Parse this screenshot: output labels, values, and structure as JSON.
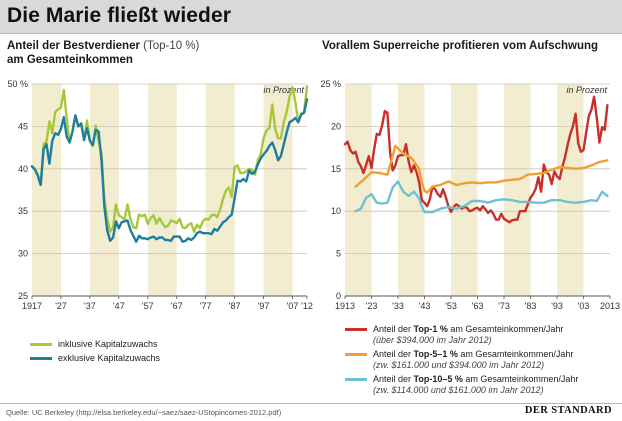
{
  "headline": "Die Marie fließt wieder",
  "left_title_bold": "Anteil der Bestverdiener",
  "left_title_paren": "(Top-10 %)",
  "left_title_line2": "am Gesamteinkommen",
  "right_title": "Vorallem Superreiche profitieren vom Aufschwung",
  "unit_note": "in Prozent",
  "source": "Quelle: UC Berkeley (http://elsa.berkeley.edu/~saez/saez-UStopincomes-2012.pdf)",
  "brand": "DER STANDARD",
  "legend_left": [
    {
      "label": "inklusive Kapitalzuwachs",
      "color": "#a7c83a"
    },
    {
      "label": "exklusive Kapitalzuwachs",
      "color": "#1f7ea0"
    }
  ],
  "legend_right": [
    {
      "pre": "Anteil der ",
      "bold": "Top-1 %",
      "post": " am Gesamteinkommen/Jahr",
      "note": "(über $394.000 im Jahr 2012)",
      "color": "#c8302a"
    },
    {
      "pre": "Anteil der ",
      "bold": "Top-5–1 %",
      "post": " am Gesamteinkommen/Jahr",
      "note": "(zw. $161.000 und $394.000 im Jahr 2012)",
      "color": "#f0a032"
    },
    {
      "pre": "Anteil der ",
      "bold": "Top-10–5 %",
      "post": " am Gesamteinkommen/Jahr",
      "note": "(zw. $114.000 und $161.000 im Jahr 2012)",
      "color": "#6cc3cf"
    }
  ],
  "colors": {
    "band": "#f2ecd0",
    "grid": "#c9c4b3",
    "baseline": "#555555"
  },
  "chart_data": [
    {
      "type": "line",
      "title": "Anteil der Bestverdiener (Top-10 %) am Gesamteinkommen",
      "xlim": [
        1917,
        2012
      ],
      "ylim": [
        25,
        50
      ],
      "yticks": [
        25,
        30,
        35,
        40,
        45,
        50
      ],
      "ytick_labels": [
        "25",
        "30",
        "35",
        "40",
        "45",
        "50 %"
      ],
      "xticks": [
        1917,
        1927,
        1937,
        1947,
        1957,
        1967,
        1977,
        1987,
        1997,
        2007,
        2012
      ],
      "xtick_labels": [
        "1917",
        "'27",
        "'37",
        "'47",
        "'57",
        "'67",
        "'77",
        "'87",
        "'97",
        "'07",
        "'12"
      ],
      "series": [
        {
          "name": "inklusive Kapitalzuwachs",
          "color": "#a7c83a",
          "x": [
            1917,
            1918,
            1919,
            1920,
            1921,
            1922,
            1923,
            1924,
            1925,
            1926,
            1927,
            1928,
            1929,
            1930,
            1931,
            1932,
            1933,
            1934,
            1935,
            1936,
            1937,
            1938,
            1939,
            1940,
            1941,
            1942,
            1943,
            1944,
            1945,
            1946,
            1947,
            1948,
            1949,
            1950,
            1951,
            1952,
            1953,
            1954,
            1955,
            1956,
            1957,
            1958,
            1959,
            1960,
            1961,
            1962,
            1963,
            1964,
            1965,
            1966,
            1967,
            1968,
            1969,
            1970,
            1971,
            1972,
            1973,
            1974,
            1975,
            1976,
            1977,
            1978,
            1979,
            1980,
            1981,
            1982,
            1983,
            1984,
            1985,
            1986,
            1987,
            1988,
            1989,
            1990,
            1991,
            1992,
            1993,
            1994,
            1995,
            1996,
            1997,
            1998,
            1999,
            2000,
            2001,
            2002,
            2003,
            2004,
            2005,
            2006,
            2007,
            2008,
            2009,
            2010,
            2011,
            2012
          ],
          "y": [
            40.3,
            40.0,
            39.3,
            38.1,
            42.9,
            43.2,
            45.6,
            44.2,
            46.7,
            47.0,
            47.2,
            49.3,
            46.0,
            43.1,
            44.4,
            46.3,
            45.0,
            45.4,
            43.4,
            45.7,
            43.3,
            42.7,
            45.1,
            43.2,
            41.8,
            36.3,
            34.1,
            32.6,
            33.1,
            35.8,
            34.5,
            34.3,
            34.0,
            35.8,
            34.1,
            33.1,
            33.0,
            34.6,
            34.4,
            34.6,
            33.5,
            34.2,
            34.5,
            33.5,
            34.2,
            33.6,
            33.1,
            33.3,
            33.9,
            33.8,
            33.6,
            34.1,
            33.1,
            33.0,
            33.4,
            33.6,
            32.6,
            33.4,
            33.0,
            33.8,
            34.1,
            34.0,
            34.5,
            34.6,
            34.3,
            35.2,
            36.5,
            37.4,
            37.8,
            36.7,
            40.2,
            40.4,
            39.5,
            39.5,
            39.7,
            40.0,
            39.9,
            39.3,
            41.0,
            41.7,
            43.6,
            44.5,
            44.8,
            47.6,
            44.7,
            43.6,
            43.6,
            45.5,
            46.7,
            48.5,
            49.6,
            47.8,
            45.5,
            46.5,
            46.7,
            49.7
          ]
        },
        {
          "name": "exklusive Kapitalzuwachs",
          "color": "#1f7ea0",
          "x": [
            1917,
            1918,
            1919,
            1920,
            1921,
            1922,
            1923,
            1924,
            1925,
            1926,
            1927,
            1928,
            1929,
            1930,
            1931,
            1932,
            1933,
            1934,
            1935,
            1936,
            1937,
            1938,
            1939,
            1940,
            1941,
            1942,
            1943,
            1944,
            1945,
            1946,
            1947,
            1948,
            1949,
            1950,
            1951,
            1952,
            1953,
            1954,
            1955,
            1956,
            1957,
            1958,
            1959,
            1960,
            1961,
            1962,
            1963,
            1964,
            1965,
            1966,
            1967,
            1968,
            1969,
            1970,
            1971,
            1972,
            1973,
            1974,
            1975,
            1976,
            1977,
            1978,
            1979,
            1980,
            1981,
            1982,
            1983,
            1984,
            1985,
            1986,
            1987,
            1988,
            1989,
            1990,
            1991,
            1992,
            1993,
            1994,
            1995,
            1996,
            1997,
            1998,
            1999,
            2000,
            2001,
            2002,
            2003,
            2004,
            2005,
            2006,
            2007,
            2008,
            2009,
            2010,
            2011,
            2012
          ],
          "y": [
            40.3,
            39.9,
            39.2,
            38.1,
            42.3,
            42.9,
            40.6,
            43.3,
            44.2,
            44.0,
            44.7,
            46.1,
            43.8,
            43.1,
            44.4,
            46.3,
            45.0,
            45.3,
            43.4,
            44.8,
            43.3,
            42.8,
            44.6,
            44.4,
            41.0,
            35.5,
            32.7,
            31.5,
            31.9,
            33.8,
            33.0,
            33.7,
            33.8,
            33.9,
            32.8,
            32.1,
            31.4,
            32.1,
            31.8,
            31.8,
            31.7,
            31.9,
            32.0,
            31.7,
            31.9,
            31.9,
            31.6,
            31.6,
            31.5,
            32.0,
            32.0,
            32.0,
            31.4,
            31.5,
            31.8,
            31.6,
            31.9,
            32.4,
            32.6,
            32.4,
            32.4,
            32.4,
            32.3,
            32.9,
            32.7,
            33.2,
            33.7,
            33.9,
            34.3,
            34.6,
            36.5,
            38.6,
            38.5,
            38.8,
            38.5,
            39.8,
            39.4,
            39.6,
            40.5,
            41.2,
            41.7,
            42.1,
            42.7,
            43.1,
            42.2,
            41.0,
            41.5,
            42.9,
            44.3,
            45.5,
            45.7,
            46.0,
            45.5,
            46.4,
            46.6,
            48.2
          ]
        }
      ]
    },
    {
      "type": "line",
      "title": "Vorallem Superreiche profitieren vom Aufschwung",
      "xlim": [
        1913,
        2013
      ],
      "ylim": [
        0,
        25
      ],
      "yticks": [
        0,
        5,
        10,
        15,
        20,
        25
      ],
      "ytick_labels": [
        "0",
        "5",
        "10",
        "15",
        "20",
        "25 %"
      ],
      "xticks": [
        1913,
        1923,
        1933,
        1943,
        1953,
        1963,
        1973,
        1983,
        1993,
        2003,
        2013
      ],
      "xtick_labels": [
        "1913",
        "'23",
        "'33",
        "'43",
        "'53",
        "'63",
        "'73",
        "'83",
        "'93",
        "'03",
        "2013"
      ],
      "series": [
        {
          "name": "Top-1 %",
          "color": "#c8302a",
          "x": [
            1913,
            1914,
            1915,
            1916,
            1917,
            1918,
            1919,
            1920,
            1921,
            1922,
            1923,
            1924,
            1925,
            1926,
            1927,
            1928,
            1929,
            1930,
            1931,
            1932,
            1933,
            1934,
            1935,
            1936,
            1937,
            1938,
            1939,
            1940,
            1941,
            1942,
            1943,
            1944,
            1945,
            1946,
            1947,
            1948,
            1949,
            1950,
            1951,
            1952,
            1953,
            1954,
            1955,
            1956,
            1957,
            1958,
            1959,
            1960,
            1961,
            1962,
            1963,
            1964,
            1965,
            1966,
            1967,
            1968,
            1969,
            1970,
            1971,
            1972,
            1973,
            1974,
            1975,
            1976,
            1977,
            1978,
            1979,
            1980,
            1981,
            1982,
            1983,
            1984,
            1985,
            1986,
            1987,
            1988,
            1989,
            1990,
            1991,
            1992,
            1993,
            1994,
            1995,
            1996,
            1997,
            1998,
            1999,
            2000,
            2001,
            2002,
            2003,
            2004,
            2005,
            2006,
            2007,
            2008,
            2009,
            2010,
            2011,
            2012
          ],
          "y": [
            17.9,
            18.2,
            17.2,
            16.8,
            17.0,
            15.8,
            15.3,
            14.5,
            15.5,
            16.5,
            15.1,
            17.3,
            19.1,
            19.0,
            20.1,
            21.8,
            21.6,
            16.9,
            14.8,
            15.4,
            16.5,
            16.6,
            16.6,
            17.9,
            15.9,
            14.6,
            15.4,
            14.6,
            13.4,
            11.3,
            11.0,
            10.6,
            11.4,
            12.9,
            12.6,
            12.0,
            11.7,
            12.6,
            11.7,
            10.6,
            9.9,
            10.5,
            10.8,
            10.6,
            10.3,
            10.5,
            10.4,
            10.0,
            10.1,
            10.3,
            10.4,
            10.1,
            10.6,
            10.2,
            9.8,
            10.1,
            9.7,
            9.0,
            9.0,
            9.7,
            9.1,
            8.9,
            8.7,
            8.9,
            9.0,
            9.0,
            10.0,
            10.0,
            10.0,
            10.8,
            11.6,
            12.0,
            12.7,
            14.0,
            12.3,
            15.5,
            14.6,
            14.3,
            13.2,
            14.7,
            14.1,
            13.8,
            15.2,
            16.3,
            17.8,
            19.1,
            20.0,
            21.5,
            18.0,
            17.0,
            17.2,
            19.2,
            21.2,
            22.0,
            23.5,
            21.0,
            18.1,
            19.9,
            19.6,
            22.5
          ]
        },
        {
          "name": "Top-5–1 %",
          "color": "#f0a032",
          "x": [
            1917,
            1920,
            1923,
            1926,
            1929,
            1932,
            1935,
            1938,
            1941,
            1942,
            1943,
            1944,
            1946,
            1949,
            1952,
            1955,
            1958,
            1961,
            1964,
            1967,
            1970,
            1973,
            1976,
            1979,
            1982,
            1985,
            1988,
            1991,
            1994,
            1997,
            2000,
            2003,
            2006,
            2009,
            2012
          ],
          "y": [
            12.9,
            13.7,
            14.6,
            14.5,
            14.3,
            17.7,
            16.8,
            16.3,
            15.0,
            13.4,
            12.4,
            12.2,
            12.9,
            13.1,
            13.5,
            13.1,
            13.3,
            13.4,
            13.3,
            13.4,
            13.4,
            13.6,
            13.7,
            13.8,
            14.3,
            14.4,
            14.5,
            14.9,
            15.2,
            15.1,
            15.0,
            15.1,
            15.4,
            15.8,
            16.0
          ]
        },
        {
          "name": "Top-10–5 %",
          "color": "#6cc3cf",
          "x": [
            1917,
            1919,
            1921,
            1923,
            1925,
            1927,
            1929,
            1931,
            1933,
            1935,
            1937,
            1939,
            1941,
            1942,
            1943,
            1946,
            1949,
            1952,
            1955,
            1958,
            1961,
            1964,
            1967,
            1970,
            1973,
            1976,
            1979,
            1982,
            1985,
            1988,
            1991,
            1994,
            1997,
            2000,
            2003,
            2006,
            2008,
            2010,
            2012
          ],
          "y": [
            10.0,
            10.3,
            11.6,
            12.0,
            11.0,
            10.9,
            11.0,
            12.8,
            13.5,
            12.3,
            11.8,
            12.3,
            11.5,
            10.6,
            9.9,
            9.9,
            10.3,
            10.5,
            10.3,
            10.6,
            11.2,
            11.2,
            11.0,
            11.3,
            11.4,
            11.3,
            11.1,
            11.1,
            11.0,
            11.0,
            11.3,
            11.3,
            11.1,
            11.0,
            11.1,
            11.3,
            11.2,
            12.3,
            11.8
          ]
        }
      ]
    }
  ]
}
